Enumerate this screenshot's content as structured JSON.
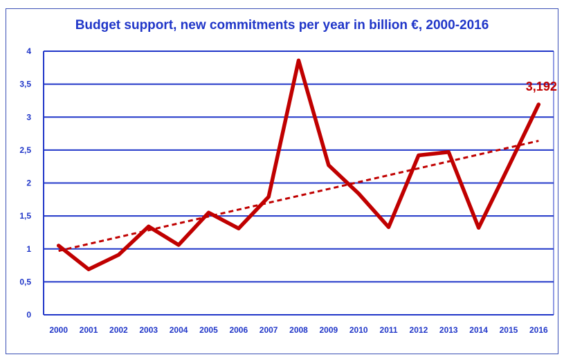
{
  "chart_data": {
    "type": "line",
    "title": "Budget support, new commitments per year in billion €, 2000-2016",
    "xlabel": "",
    "ylabel": "",
    "categories": [
      "2000",
      "2001",
      "2002",
      "2003",
      "2004",
      "2005",
      "2006",
      "2007",
      "2008",
      "2009",
      "2010",
      "2011",
      "2012",
      "2013",
      "2014",
      "2015",
      "2016"
    ],
    "series": [
      {
        "values": [
          1.05,
          0.69,
          0.91,
          1.34,
          1.06,
          1.55,
          1.31,
          1.79,
          3.86,
          2.27,
          1.84,
          1.33,
          2.42,
          2.47,
          1.32,
          2.25,
          3.192
        ],
        "color": "#c00000"
      }
    ],
    "trendline": {
      "style": "dashed",
      "color": "#c00000",
      "start": 0.97,
      "end": 2.64
    },
    "ylim": [
      0,
      4
    ],
    "yticks": [
      "0",
      "0,5",
      "1",
      "1,5",
      "2",
      "2,5",
      "3",
      "3,5",
      "4"
    ],
    "end_label": "3,192",
    "grid": "horizontal",
    "gridColor": "#1f35c8",
    "axisTextColor": "#1f35c8"
  }
}
